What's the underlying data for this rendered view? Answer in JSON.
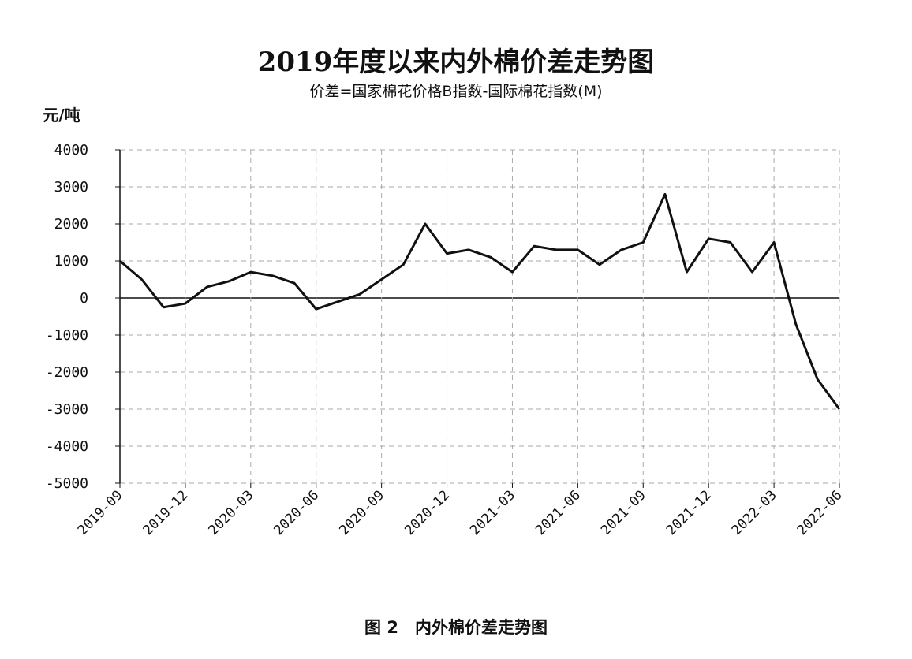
{
  "chart_data": {
    "type": "line",
    "title": "2019年度以来内外棉价差走势图",
    "subtitle": "价差=国家棉花价格B指数-国际棉花指数(M)",
    "y_label": "元/吨",
    "caption": "图 2　内外棉价差走势图",
    "x": [
      "2019-09",
      "2019-10",
      "2019-11",
      "2019-12",
      "2020-01",
      "2020-02",
      "2020-03",
      "2020-04",
      "2020-05",
      "2020-06",
      "2020-07",
      "2020-08",
      "2020-09",
      "2020-10",
      "2020-11",
      "2020-12",
      "2021-01",
      "2021-02",
      "2021-03",
      "2021-04",
      "2021-05",
      "2021-06",
      "2021-07",
      "2021-08",
      "2021-09",
      "2021-10",
      "2021-11",
      "2021-12",
      "2022-01",
      "2022-02",
      "2022-03",
      "2022-04",
      "2022-05",
      "2022-06"
    ],
    "series": [
      {
        "name": "价差",
        "color": "#111111",
        "values": [
          1000,
          500,
          -250,
          -150,
          300,
          450,
          700,
          600,
          400,
          -300,
          -100,
          100,
          500,
          900,
          2000,
          1200,
          1300,
          1100,
          700,
          1400,
          1300,
          1300,
          900,
          1300,
          1500,
          2800,
          700,
          1600,
          1500,
          700,
          1500,
          -700,
          -2200,
          -3000
        ]
      }
    ],
    "xticks": [
      "2019-09",
      "2019-12",
      "2020-03",
      "2020-06",
      "2020-09",
      "2020-12",
      "2021-03",
      "2021-06",
      "2021-09",
      "2021-12",
      "2022-03",
      "2022-06"
    ],
    "ylim": [
      -5000,
      4000
    ],
    "yticks": [
      -5000,
      -4000,
      -3000,
      -2000,
      -1000,
      0,
      1000,
      2000,
      3000,
      4000
    ],
    "grid": true
  }
}
